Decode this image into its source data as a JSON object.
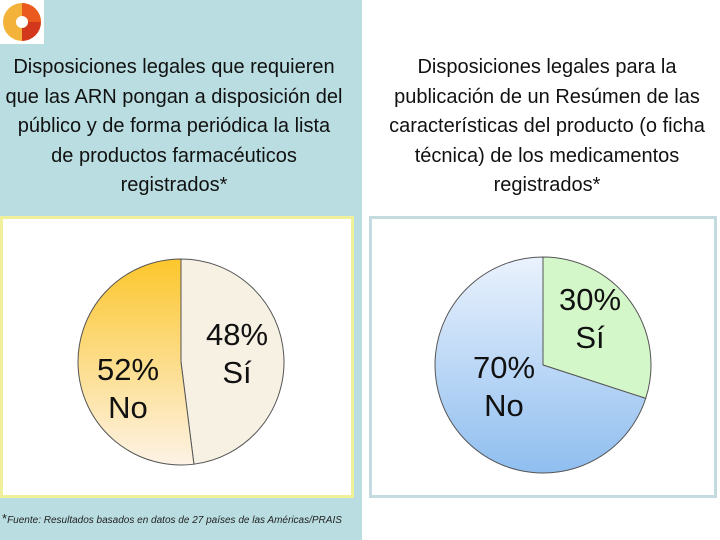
{
  "left_panel": {
    "title": "Disposiciones legales que requieren que las ARN pongan a disposición del público y de forma periódica la lista de productos farmacéuticos registrados*",
    "footnote_star": "*",
    "footnote": "Fuente: Resultados basados en datos de 27 países de las Américas/PRAIS"
  },
  "right_panel": {
    "title": "Disposiciones legales para la publicación de un Resúmen de las características del producto (o ficha técnica) de los medicamentos registrados*"
  },
  "chart_data": [
    {
      "type": "pie",
      "title": "Disposiciones legales que requieren que las ARN pongan a disposición del público y de forma periódica la lista de productos farmacéuticos registrados*",
      "slices": [
        {
          "label": "Sí",
          "percent_label": "48%",
          "value": 48,
          "color": "#f7f1e4"
        },
        {
          "label": "No",
          "percent_label": "52%",
          "value": 52,
          "color": "#fcc62c"
        }
      ]
    },
    {
      "type": "pie",
      "title": "Disposiciones legales para la publicación de un Resúmen de las características del producto (o ficha técnica) de los medicamentos registrados*",
      "slices": [
        {
          "label": "Sí",
          "percent_label": "30%",
          "value": 30,
          "color": "#d3f7c8"
        },
        {
          "label": "No",
          "percent_label": "70%",
          "value": 70,
          "color": "#98c4ef"
        }
      ]
    }
  ]
}
